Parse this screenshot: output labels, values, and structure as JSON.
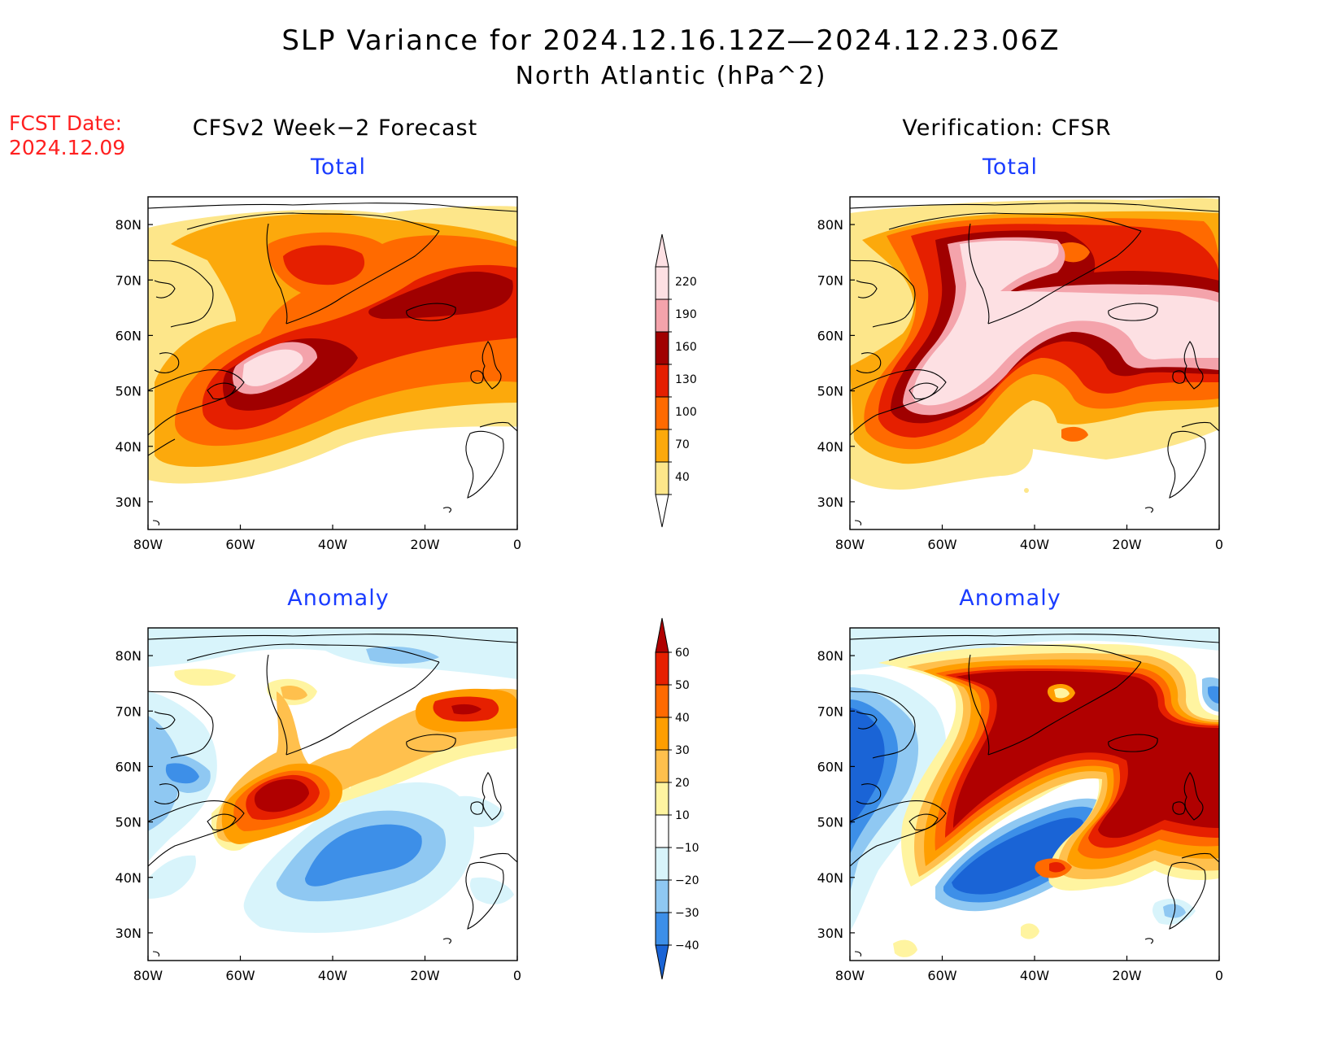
{
  "title": {
    "line1": "SLP Variance for 2024.12.16.12Z—2024.12.23.06Z",
    "line2": "North Atlantic (hPa^2)"
  },
  "fcst_date": {
    "label": "FCST Date:",
    "value": "2024.12.09"
  },
  "columns": {
    "left": "CFSv2 Week−2 Forecast",
    "right": "Verification: CFSR"
  },
  "panel_titles": {
    "total": "Total",
    "anomaly": "Anomaly"
  },
  "map_axes": {
    "lon_ticks": [
      "80W",
      "60W",
      "40W",
      "20W",
      "0"
    ],
    "lat_ticks": [
      "80N",
      "70N",
      "60N",
      "50N",
      "40N",
      "30N"
    ],
    "lon_range": [
      -80,
      0
    ],
    "lat_range": [
      25,
      85
    ]
  },
  "colorbars": {
    "total": {
      "labels": [
        "40",
        "70",
        "100",
        "130",
        "160",
        "190",
        "220"
      ],
      "colors": [
        "#fde68a",
        "#fca90c",
        "#ff6a00",
        "#e51f00",
        "#a00000",
        "#f4a3ab",
        "#fde0e3"
      ]
    },
    "anomaly": {
      "labels": [
        "60",
        "50",
        "40",
        "30",
        "20",
        "10",
        "−10",
        "−20",
        "−30",
        "−40"
      ],
      "colors": [
        "#b00000",
        "#e62000",
        "#ff6a00",
        "#ff9e00",
        "#ffc04d",
        "#fff4a0",
        "#ffffff",
        "#d8f4fb",
        "#8fc8f2",
        "#3d8fe8",
        "#1a64d6"
      ]
    }
  },
  "colors": {
    "title_accent": "#1a3cff",
    "fcst_text": "#ff2020"
  }
}
